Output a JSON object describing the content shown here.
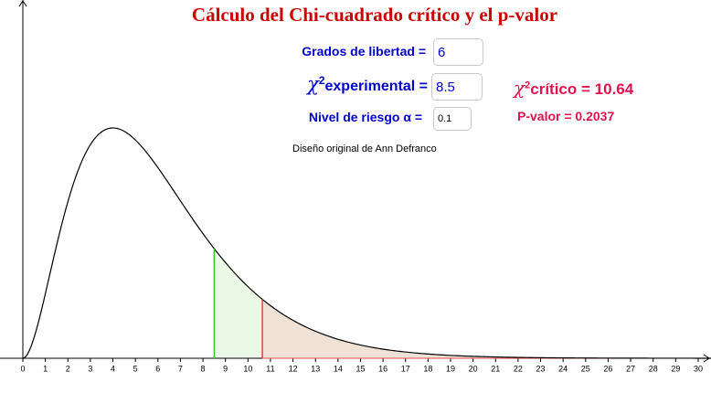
{
  "title": "Cálculo del Chi-cuadrado crítico  y el p-valor",
  "inputs": [
    {
      "label": "Grados de libertad =",
      "value": 6
    },
    {
      "symbol": "χ",
      "exponent": "2",
      "label": "experimental =",
      "value": 8.5
    },
    {
      "label": "Nivel de riesgo α =",
      "value": 0.1
    }
  ],
  "critical": {
    "symbol": "χ",
    "exponent": "2",
    "label": "crítico =",
    "value": 10.64
  },
  "p_value": {
    "label": "P-valor =",
    "value": 0.2037
  },
  "credit": "Diseño original de Ann Defranco",
  "chart_data": {
    "type": "line",
    "xlim": [
      -1.015,
      30.57
    ],
    "xticks": [
      0,
      1,
      2,
      3,
      4,
      5,
      6,
      7,
      8,
      9,
      10,
      11,
      12,
      13,
      14,
      15,
      16,
      17,
      18,
      19,
      20,
      21,
      22,
      23,
      24,
      25,
      26,
      27,
      28,
      29,
      30
    ],
    "ylim": [
      0,
      0.2105
    ]
  }
}
